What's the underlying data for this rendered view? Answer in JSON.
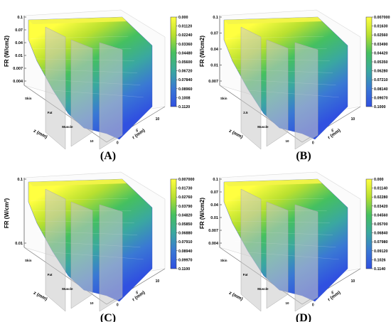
{
  "figure": {
    "panels": [
      {
        "id": "panel-a",
        "letter": "(A)",
        "zlabel": "FR (W/cm2)",
        "xlabel": "z (mm)",
        "ylabel": "r (mm)",
        "z_ticks": [
          "0.1",
          "0.07",
          "0.04",
          "0.01",
          "0.007",
          "0.004"
        ],
        "x_ticks": [
          "Skin",
          "Fat",
          "Muscle",
          "10"
        ],
        "y_ticks": [
          "0",
          "5",
          "10"
        ],
        "colorbar": {
          "labels": [
            "0.000",
            "0.01120",
            "0.02240",
            "0.03360",
            "0.04480",
            "0.05600",
            "0.06720",
            "0.07840",
            "0.08960",
            "0.1008",
            "0.1120"
          ],
          "colors": [
            "#3050e0",
            "#3a78d4",
            "#3aa8a0",
            "#45c060",
            "#b8e030",
            "#ffff40"
          ]
        }
      },
      {
        "id": "panel-b",
        "letter": "(B)",
        "zlabel": "FR (W/cm2)",
        "xlabel": "z (mm)",
        "ylabel": "r (mm)",
        "z_ticks": [
          "0.1",
          "0.07",
          "0.04",
          "0.01",
          "0.007"
        ],
        "x_ticks": [
          "Skin",
          "2.5",
          "Muscle",
          "10"
        ],
        "y_ticks": [
          "0",
          "5",
          "10"
        ],
        "colorbar": {
          "labels": [
            "0.007000",
            "0.01630",
            "0.02560",
            "0.03490",
            "0.04420",
            "0.05350",
            "0.06280",
            "0.07210",
            "0.08140",
            "0.09070",
            "0.1000"
          ],
          "colors": [
            "#3050e0",
            "#3a78d4",
            "#3aa8a0",
            "#45c060",
            "#b8e030",
            "#ffff40"
          ]
        }
      },
      {
        "id": "panel-c",
        "letter": "(C)",
        "zlabel": "FR (W/cm²)",
        "xlabel": "z (mm)",
        "ylabel": "r (mm)",
        "z_ticks": [
          "0.1",
          "0.01"
        ],
        "x_ticks": [
          "Skin",
          "Fat",
          "Muscle",
          "10"
        ],
        "y_ticks": [
          "0",
          "5",
          "10"
        ],
        "colorbar": {
          "labels": [
            "0.007000",
            "0.01730",
            "0.02760",
            "0.03790",
            "0.04820",
            "0.05850",
            "0.06880",
            "0.07910",
            "0.08940",
            "0.09970",
            "0.1100"
          ],
          "colors": [
            "#3050e0",
            "#3a78d4",
            "#3aa8a0",
            "#45c060",
            "#b8e030",
            "#ffff40"
          ]
        }
      },
      {
        "id": "panel-d",
        "letter": "(D)",
        "zlabel": "FR (W/cm2)",
        "xlabel": "z (mm)",
        "ylabel": "r (mm)",
        "z_ticks": [
          "0.1",
          "0.07",
          "0.04",
          "0.01",
          "0.007",
          "0.004"
        ],
        "x_ticks": [
          "Skin",
          "Fat",
          "Muscle",
          "10"
        ],
        "y_ticks": [
          "0",
          "5",
          "10"
        ],
        "colorbar": {
          "labels": [
            "0.000",
            "0.01140",
            "0.02280",
            "0.03420",
            "0.04560",
            "0.05700",
            "0.06840",
            "0.07980",
            "0.09120",
            "0.1026",
            "0.1140"
          ],
          "colors": [
            "#3050e0",
            "#3a78d4",
            "#3aa8a0",
            "#45c060",
            "#b8e030",
            "#ffff40"
          ]
        }
      }
    ]
  },
  "chart_data": [
    {
      "type": "surface",
      "panel": "(A)",
      "zlabel": "FR (W/cm2)",
      "xlabel": "z (mm)",
      "ylabel": "r (mm)",
      "z_scale": "log",
      "colorbar_range": [
        0.0,
        0.112
      ],
      "layers": [
        "Skin",
        "Fat",
        "Muscle"
      ]
    },
    {
      "type": "surface",
      "panel": "(B)",
      "zlabel": "FR (W/cm2)",
      "xlabel": "z (mm)",
      "ylabel": "r (mm)",
      "z_scale": "log",
      "colorbar_range": [
        0.007,
        0.1
      ],
      "layers": [
        "Skin",
        "Muscle"
      ]
    },
    {
      "type": "surface",
      "panel": "(C)",
      "zlabel": "FR (W/cm²)",
      "xlabel": "z (mm)",
      "ylabel": "r (mm)",
      "z_scale": "log",
      "colorbar_range": [
        0.007,
        0.11
      ],
      "layers": [
        "Skin",
        "Fat",
        "Muscle"
      ]
    },
    {
      "type": "surface",
      "panel": "(D)",
      "zlabel": "FR (W/cm2)",
      "xlabel": "z (mm)",
      "ylabel": "r (mm)",
      "z_scale": "log",
      "colorbar_range": [
        0.0,
        0.114
      ],
      "layers": [
        "Skin",
        "Fat",
        "Muscle"
      ]
    }
  ]
}
